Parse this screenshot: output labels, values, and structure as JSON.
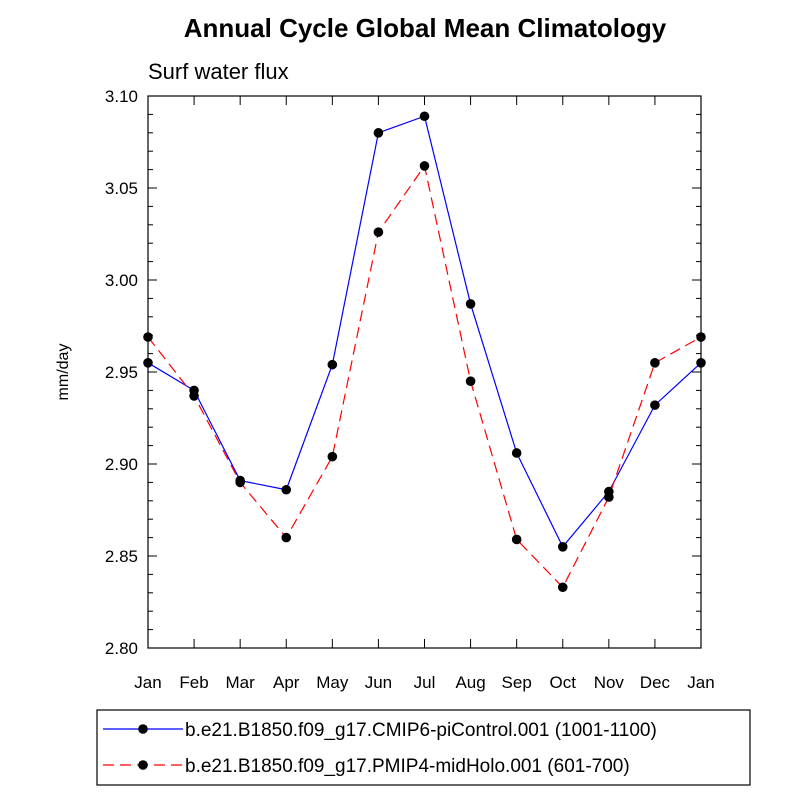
{
  "chart_data": {
    "type": "line",
    "title": "Annual Cycle Global Mean Climatology",
    "subtitle": "Surf water flux",
    "ylabel": "mm/day",
    "xlabel": "",
    "categories": [
      "Jan",
      "Feb",
      "Mar",
      "Apr",
      "May",
      "Jun",
      "Jul",
      "Aug",
      "Sep",
      "Oct",
      "Nov",
      "Dec",
      "Jan"
    ],
    "ylim": [
      2.8,
      3.1
    ],
    "yticks": [
      "2.80",
      "2.85",
      "2.90",
      "2.95",
      "3.00",
      "3.05",
      "3.10"
    ],
    "y_minor_step": 0.01,
    "grid": false,
    "legend_position": "bottom",
    "series": [
      {
        "name": "b.e21.B1850.f09_g17.CMIP6-piControl.001 (1001-1100)",
        "color": "#0000ff",
        "dash": "solid",
        "marker": "filled-circle",
        "values": [
          2.955,
          2.94,
          2.891,
          2.886,
          2.954,
          3.08,
          3.089,
          2.987,
          2.906,
          2.855,
          2.885,
          2.932,
          2.955
        ]
      },
      {
        "name": "b.e21.B1850.f09_g17.PMIP4-midHolo.001 (601-700)",
        "color": "#ff0000",
        "dash": "dashed",
        "marker": "filled-circle",
        "values": [
          2.969,
          2.937,
          2.89,
          2.86,
          2.904,
          3.026,
          3.062,
          2.945,
          2.859,
          2.833,
          2.882,
          2.955,
          2.969
        ]
      }
    ]
  }
}
